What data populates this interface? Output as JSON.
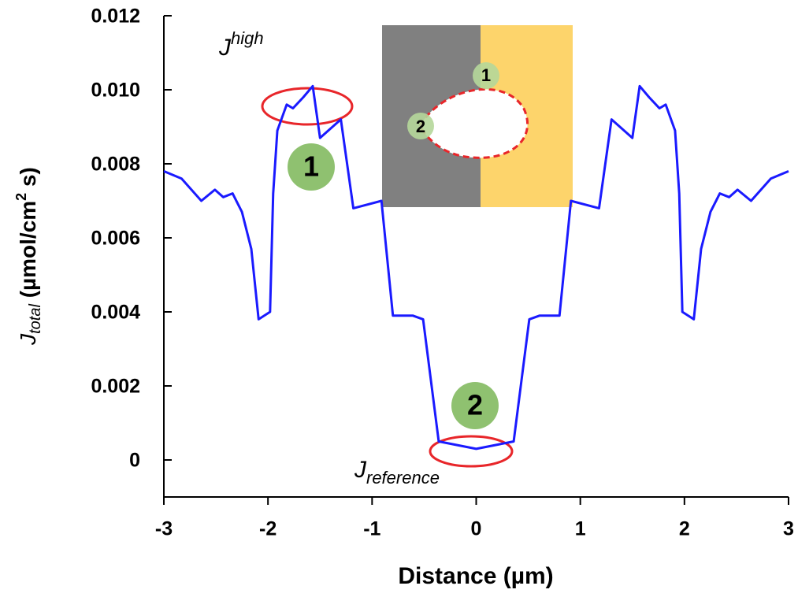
{
  "chart_data": {
    "type": "line",
    "x_label": "Distance (µm)",
    "y_label_parts": [
      "J",
      "total",
      " (µmol/cm",
      "2",
      " s)"
    ],
    "annotations": {
      "high": [
        "J",
        "high"
      ],
      "reference": [
        "J",
        "reference"
      ],
      "markers": [
        "1",
        "2"
      ],
      "inset_markers": [
        "1",
        "2"
      ]
    },
    "x": [
      -3,
      -2.83,
      -2.64,
      -2.51,
      -2.43,
      -2.34,
      -2.25,
      -2.16,
      -2.09,
      -1.98,
      -1.95,
      -1.91,
      -1.82,
      -1.76,
      -1.66,
      -1.57,
      -1.5,
      -1.3,
      -1.18,
      -0.91,
      -0.8,
      -0.61,
      -0.51,
      -0.36,
      0,
      0.36,
      0.51,
      0.61,
      0.8,
      0.91,
      1.18,
      1.3,
      1.5,
      1.57,
      1.66,
      1.76,
      1.82,
      1.91,
      1.95,
      1.98,
      2.09,
      2.16,
      2.25,
      2.34,
      2.43,
      2.51,
      2.64,
      2.83,
      3
    ],
    "series": [
      {
        "color": "#1a1aff",
        "values": [
          0.0078,
          0.0076,
          0.007,
          0.0073,
          0.0071,
          0.0072,
          0.0067,
          0.0057,
          0.0038,
          0.004,
          0.0072,
          0.0089,
          0.0096,
          0.0095,
          0.0098,
          0.0101,
          0.0087,
          0.0092,
          0.0068,
          0.007,
          0.0039,
          0.0039,
          0.0038,
          0.0005,
          0.0003,
          0.0005,
          0.0038,
          0.0039,
          0.0039,
          0.007,
          0.0068,
          0.0092,
          0.0087,
          0.0101,
          0.0098,
          0.0095,
          0.0096,
          0.0089,
          0.0072,
          0.004,
          0.0038,
          0.0057,
          0.0067,
          0.0072,
          0.0071,
          0.0073,
          0.007,
          0.0076,
          0.0078
        ]
      }
    ],
    "xlim": [
      -3,
      3
    ],
    "xticks": [
      -3,
      -2,
      -1,
      0,
      1,
      2,
      3
    ],
    "ylim": [
      -0.001,
      0.012
    ],
    "yticks": [
      0,
      0.002,
      0.004,
      0.006,
      0.008,
      {
        "value": 0.01,
        "label": "0.010"
      },
      0.012
    ]
  }
}
